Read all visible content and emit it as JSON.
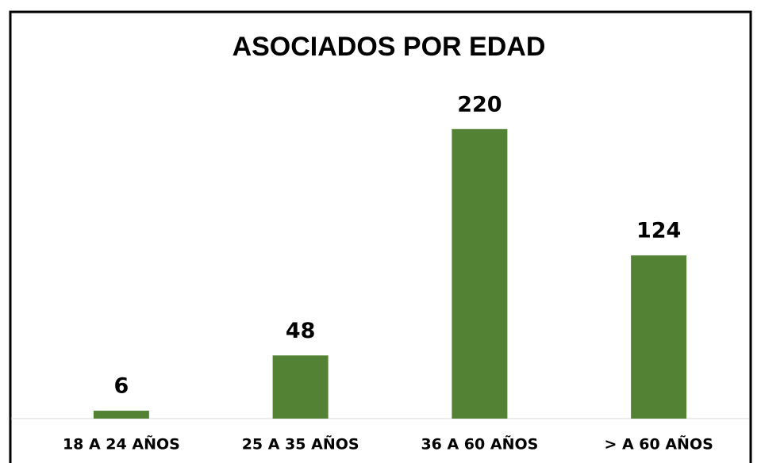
{
  "chart_data": {
    "type": "bar",
    "title": "ASOCIADOS POR EDAD",
    "categories": [
      "18 A 24 AÑOS",
      "25 A 35 AÑOS",
      "36 A 60 AÑOS",
      "> A 60 AÑOS"
    ],
    "values": [
      6,
      48,
      220,
      124
    ],
    "color": "#548235",
    "ylim": [
      0,
      250
    ],
    "grid": false
  }
}
